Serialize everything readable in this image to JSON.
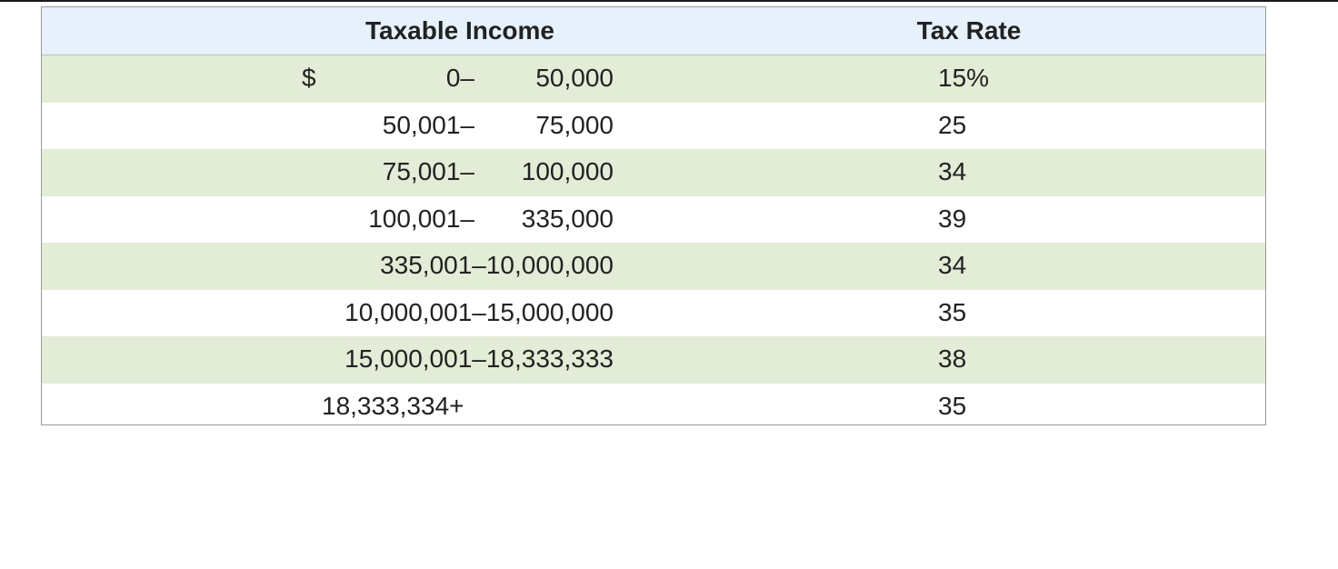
{
  "table": {
    "headers": {
      "income": "Taxable Income",
      "rate": "Tax Rate"
    },
    "rows": [
      {
        "currency": "$",
        "low": "0–",
        "high": "50,000",
        "rate": "15%"
      },
      {
        "low": "50,001–",
        "high": "75,000",
        "rate": "25"
      },
      {
        "low": "75,001–",
        "high": "100,000",
        "rate": "34"
      },
      {
        "low": "100,001–",
        "high": "335,000",
        "rate": "39"
      },
      {
        "range": "335,001–10,000,000",
        "rate": "34"
      },
      {
        "range": "10,000,001–15,000,000",
        "rate": "35"
      },
      {
        "range": "15,000,001–18,333,333",
        "rate": "38"
      },
      {
        "range": "18,333,334+",
        "rate": "35"
      }
    ]
  }
}
